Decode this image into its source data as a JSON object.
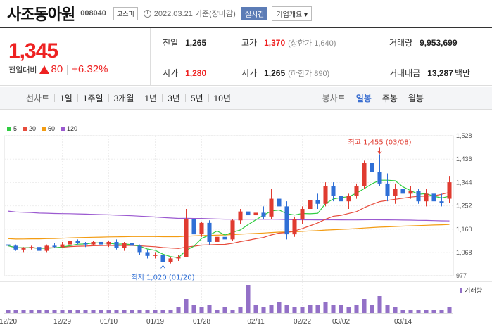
{
  "header": {
    "name": "사조동아원",
    "code": "008040",
    "market": "코스피",
    "date": "2022.03.21 기준(장마감)",
    "realtime": "실시간",
    "overview": "기업개요 ▾"
  },
  "price": {
    "current": "1,345",
    "change_label": "전일대비",
    "change_amount": "80",
    "change_pct": "+6.32%"
  },
  "stats": {
    "prev_label": "전일",
    "prev_value": "1,265",
    "high_label": "고가",
    "high_value": "1,370",
    "high_sub": "(상한가 1,640)",
    "volume_label": "거래량",
    "volume_value": "9,953,699",
    "open_label": "시가",
    "open_value": "1,280",
    "low_label": "저가",
    "low_value": "1,265",
    "low_sub": "(하한가 890)",
    "amount_label": "거래대금",
    "amount_value": "13,287",
    "amount_unit": "백만"
  },
  "tabs": {
    "line_label": "선차트",
    "periods": [
      "1일",
      "1주일",
      "3개월",
      "1년",
      "3년",
      "5년",
      "10년"
    ],
    "candle_label": "봉차트",
    "candles": [
      "일봉",
      "주봉",
      "월봉"
    ],
    "active_candle": "일봉"
  },
  "legend": [
    {
      "label": "5",
      "color": "#2ecc40"
    },
    {
      "label": "20",
      "color": "#e74c3c"
    },
    {
      "label": "60",
      "color": "#f39c12"
    },
    {
      "label": "120",
      "color": "#9b59d0"
    }
  ],
  "volume_label": "거래량",
  "annotations": {
    "max": "최고 1,455 (03/08)",
    "min": "최저 1,020 (01/20)"
  },
  "chart_data": {
    "type": "candlestick",
    "y_ticks": [
      "1,528",
      "1,436",
      "1,344",
      "1,252",
      "1,160",
      "1,068",
      "977"
    ],
    "y_tick_values": [
      1528,
      1436,
      1344,
      1252,
      1160,
      1068,
      977
    ],
    "ylim": [
      977,
      1528
    ],
    "x_ticks": [
      "12/20",
      "12/29",
      "01/10",
      "01/19",
      "01/28",
      "02/11",
      "02/22",
      "03/02",
      "03/14"
    ],
    "x_tick_index": [
      0,
      7,
      13,
      19,
      25,
      32,
      38,
      43,
      51
    ],
    "candles": [
      [
        1100,
        1110,
        1090,
        1095
      ],
      [
        1095,
        1100,
        1075,
        1080
      ],
      [
        1080,
        1090,
        1070,
        1085
      ],
      [
        1085,
        1095,
        1080,
        1090
      ],
      [
        1090,
        1100,
        1070,
        1075
      ],
      [
        1075,
        1100,
        1070,
        1095
      ],
      [
        1095,
        1105,
        1085,
        1090
      ],
      [
        1090,
        1110,
        1085,
        1100
      ],
      [
        1100,
        1125,
        1095,
        1115
      ],
      [
        1115,
        1120,
        1100,
        1105
      ],
      [
        1105,
        1110,
        1090,
        1100
      ],
      [
        1100,
        1115,
        1095,
        1110
      ],
      [
        1110,
        1120,
        1095,
        1100
      ],
      [
        1100,
        1115,
        1090,
        1110
      ],
      [
        1110,
        1120,
        1080,
        1085
      ],
      [
        1085,
        1110,
        1075,
        1105
      ],
      [
        1105,
        1115,
        1090,
        1095
      ],
      [
        1095,
        1100,
        1060,
        1070
      ],
      [
        1070,
        1080,
        1045,
        1055
      ],
      [
        1055,
        1070,
        1045,
        1060
      ],
      [
        1060,
        1065,
        1020,
        1030
      ],
      [
        1030,
        1050,
        1025,
        1045
      ],
      [
        1045,
        1060,
        1035,
        1050
      ],
      [
        1050,
        1240,
        1050,
        1200
      ],
      [
        1200,
        1240,
        1120,
        1140
      ],
      [
        1140,
        1190,
        1130,
        1185
      ],
      [
        1185,
        1195,
        1100,
        1110
      ],
      [
        1110,
        1140,
        1090,
        1130
      ],
      [
        1130,
        1165,
        1100,
        1120
      ],
      [
        1120,
        1200,
        1115,
        1195
      ],
      [
        1195,
        1240,
        1180,
        1230
      ],
      [
        1230,
        1330,
        1210,
        1215
      ],
      [
        1215,
        1240,
        1200,
        1225
      ],
      [
        1225,
        1250,
        1200,
        1210
      ],
      [
        1210,
        1320,
        1200,
        1280
      ],
      [
        1280,
        1360,
        1220,
        1250
      ],
      [
        1250,
        1270,
        1120,
        1140
      ],
      [
        1140,
        1210,
        1130,
        1200
      ],
      [
        1200,
        1250,
        1180,
        1240
      ],
      [
        1240,
        1280,
        1220,
        1275
      ],
      [
        1275,
        1300,
        1240,
        1260
      ],
      [
        1260,
        1345,
        1250,
        1330
      ],
      [
        1330,
        1345,
        1270,
        1290
      ],
      [
        1290,
        1310,
        1250,
        1270
      ],
      [
        1270,
        1300,
        1240,
        1290
      ],
      [
        1290,
        1340,
        1280,
        1330
      ],
      [
        1330,
        1430,
        1320,
        1420
      ],
      [
        1420,
        1435,
        1380,
        1385
      ],
      [
        1385,
        1455,
        1330,
        1340
      ],
      [
        1340,
        1380,
        1270,
        1290
      ],
      [
        1290,
        1340,
        1260,
        1320
      ],
      [
        1320,
        1360,
        1290,
        1300
      ],
      [
        1300,
        1330,
        1280,
        1310
      ],
      [
        1310,
        1320,
        1260,
        1270
      ],
      [
        1270,
        1320,
        1250,
        1300
      ],
      [
        1300,
        1310,
        1260,
        1270
      ],
      [
        1270,
        1300,
        1250,
        1265
      ],
      [
        1280,
        1370,
        1265,
        1345
      ]
    ],
    "volumes": [
      1,
      1,
      1,
      1,
      1,
      1,
      1,
      1,
      1,
      1,
      1,
      1,
      1,
      1,
      1,
      1,
      1,
      1,
      1,
      1,
      1,
      1,
      2,
      5,
      3,
      2,
      3,
      1,
      2,
      1,
      2,
      10,
      3,
      2,
      3,
      4,
      3,
      2,
      2,
      3,
      3,
      4,
      3,
      3,
      2,
      3,
      5,
      3,
      6,
      3,
      2,
      1,
      1,
      1,
      1,
      1,
      1,
      2
    ]
  }
}
